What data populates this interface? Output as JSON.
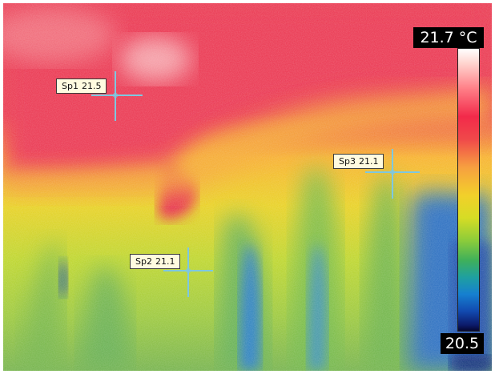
{
  "scale": {
    "max_label": "21.7 °C",
    "min_label": "20.5",
    "palette": [
      "#ffffff",
      "#ff8088",
      "#f22a4a",
      "#f7a040",
      "#f2d02a",
      "#8ccc3a",
      "#1fa0a0",
      "#1680d0",
      "#0c1a6a"
    ]
  },
  "spots": [
    {
      "name": "Sp1",
      "value": "21.5"
    },
    {
      "name": "Sp2",
      "value": "21.1"
    },
    {
      "name": "Sp3",
      "value": "21.1"
    }
  ],
  "colors": {
    "hot": "#e83a4f",
    "warm": "#f7b12a",
    "mid": "#e8d020",
    "cool": "#74b24a",
    "cold": "#1a5cb0",
    "crosshair": "#7ec8e0"
  }
}
